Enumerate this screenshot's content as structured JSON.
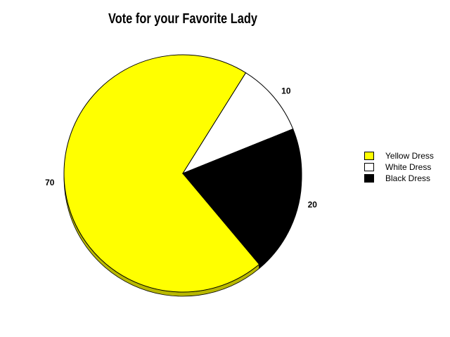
{
  "chart_data": {
    "type": "pie",
    "title": "Vote for your Favorite Lady",
    "categories": [
      "Yellow Dress",
      "White Dress",
      "Black Dress"
    ],
    "values": [
      70,
      10,
      20
    ],
    "colors": [
      "#ffff00",
      "#ffffff",
      "#000000"
    ],
    "data_labels": [
      "70",
      "10",
      "20"
    ],
    "legend": "right",
    "style": "3d-shadow"
  }
}
